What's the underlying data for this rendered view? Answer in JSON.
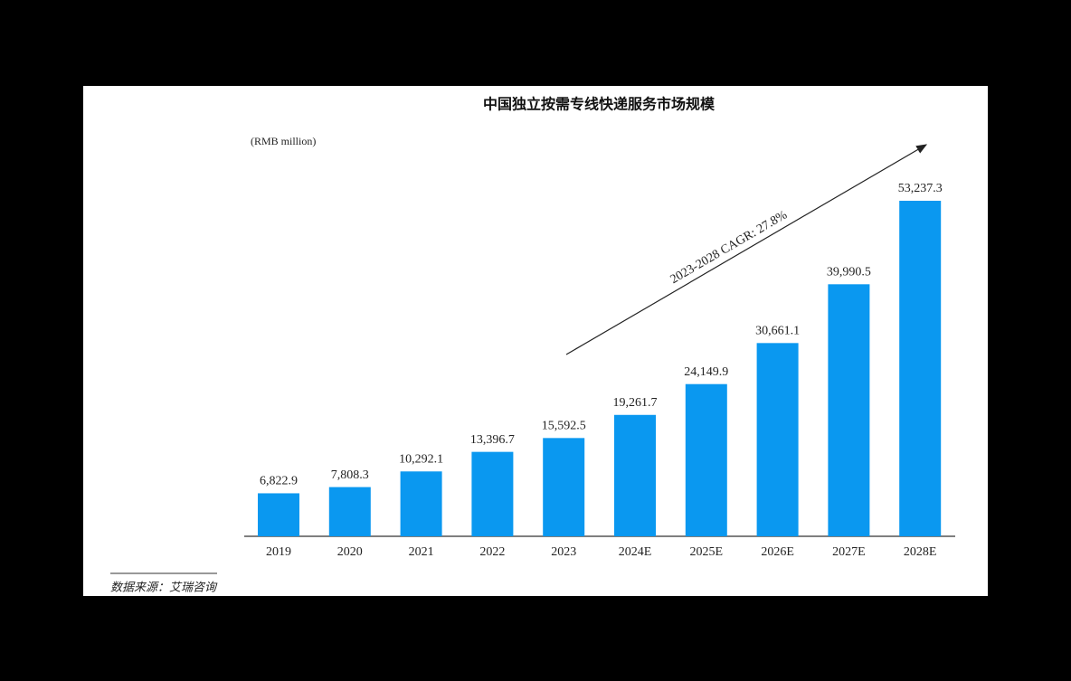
{
  "chart_data": {
    "type": "bar",
    "title": "中国独立按需专线快递服务市场规模",
    "unit_label": "(RMB million)",
    "annotation": "2023-2028 CAGR: 27.8%",
    "source": "数据来源：艾瑞咨询",
    "categories": [
      "2019",
      "2020",
      "2021",
      "2022",
      "2023",
      "2024E",
      "2025E",
      "2026E",
      "2027E",
      "2028E"
    ],
    "values": [
      6822.9,
      7808.3,
      10292.1,
      13396.7,
      15592.5,
      19261.7,
      24149.9,
      30661.1,
      39990.5,
      53237.3
    ],
    "value_labels": [
      "6,822.9",
      "7,808.3",
      "10,292.1",
      "13,396.7",
      "15,592.5",
      "19,261.7",
      "24,149.9",
      "30,661.1",
      "39,990.5",
      "53,237.3"
    ],
    "color": "#0a98f0"
  }
}
